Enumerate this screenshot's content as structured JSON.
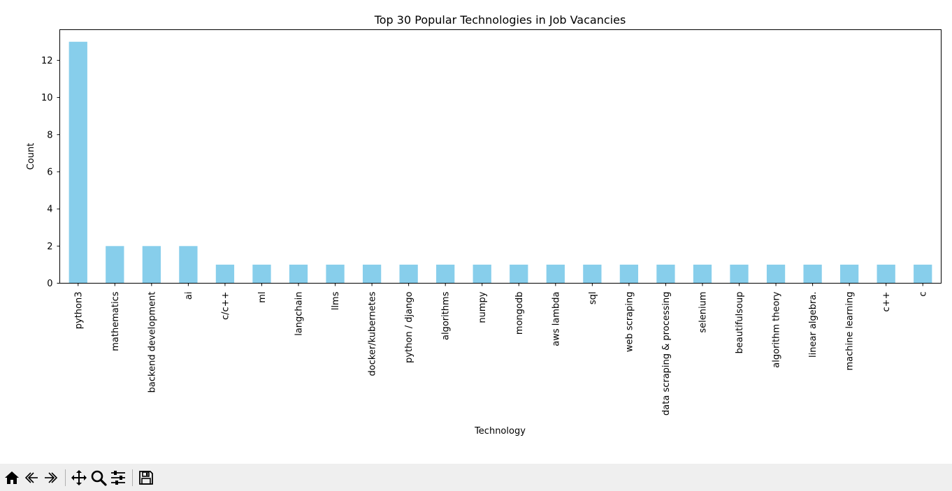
{
  "chart_data": {
    "type": "bar",
    "title": "Top 30 Popular Technologies in Job Vacancies",
    "xlabel": "Technology",
    "ylabel": "Count",
    "ylim": [
      0,
      13.65
    ],
    "yticks": [
      0,
      2,
      4,
      6,
      8,
      10,
      12
    ],
    "grid": false,
    "legend": "none",
    "bar_color": "#87ceeb",
    "categories": [
      "python3",
      "mathematics",
      "backend development",
      "ai",
      "c/c++",
      "ml",
      "langchain",
      "llms",
      "docker/kubernetes",
      "python / django",
      "algorithms",
      "numpy",
      "mongodb",
      "aws lambda",
      "sql",
      "web scraping",
      "data scraping & processing",
      "selenium",
      "beautifulsoup",
      "algorithm theory",
      "linear algebra.",
      "machine learning",
      "c++",
      "c"
    ],
    "values": [
      13,
      2,
      2,
      2,
      1,
      1,
      1,
      1,
      1,
      1,
      1,
      1,
      1,
      1,
      1,
      1,
      1,
      1,
      1,
      1,
      1,
      1,
      1,
      1
    ]
  },
  "toolbar": {
    "buttons": [
      {
        "name": "home-icon"
      },
      {
        "name": "back-icon"
      },
      {
        "name": "forward-icon"
      },
      {
        "name": "pan-icon"
      },
      {
        "name": "zoom-icon"
      },
      {
        "name": "configure-subplots-icon"
      },
      {
        "name": "save-icon"
      }
    ]
  }
}
